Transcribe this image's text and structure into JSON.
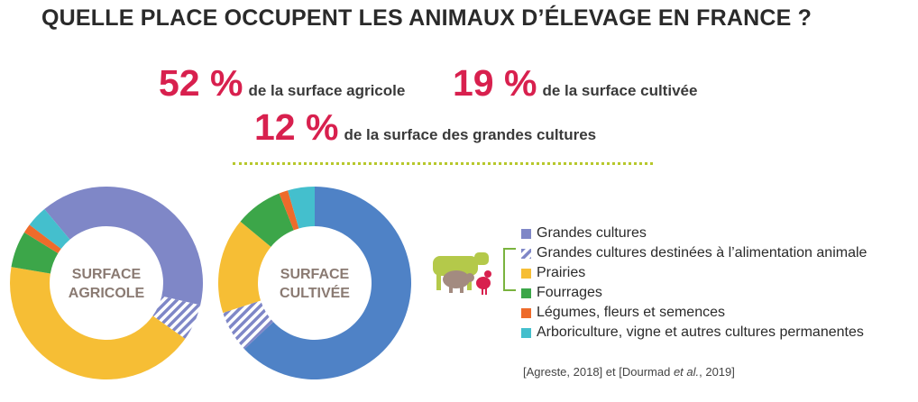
{
  "title": "QUELLE PLACE OCCUPENT LES ANIMAUX D’ÉLEVAGE EN FRANCE ?",
  "stats": [
    {
      "value": "52 %",
      "label": "de la surface agricole"
    },
    {
      "value": "19 %",
      "label": "de la surface cultivée"
    },
    {
      "value": "12 %",
      "label": "de la surface des grandes cultures"
    }
  ],
  "colors": {
    "grandes_cultures": "#7f87c7",
    "grandes_cultures_alim": "#7f87c7",
    "prairies": "#f6be35",
    "fourrages": "#3ca649",
    "legumes": "#ee6b2b",
    "arboriculture": "#44bfcd",
    "cultivee_main": "#4f82c6",
    "accent": "#d8204e",
    "bracket": "#7ab33e"
  },
  "chart_data": [
    {
      "type": "pie",
      "title": "SURFACE AGRICOLE",
      "title_lines": [
        "SURFACE",
        "AGRICOLE"
      ],
      "categories": [
        "Grandes cultures",
        "Grandes cultures destinées à l’alimentation animale",
        "Prairies",
        "Fourrages",
        "Légumes, fleurs et semences",
        "Arboriculture, vigne et autres cultures permanentes"
      ],
      "values": [
        39,
        6,
        42,
        6,
        1.5,
        3.5
      ],
      "donut": true
    },
    {
      "type": "pie",
      "title": "SURFACE CULTIVÉE",
      "title_lines": [
        "SURFACE",
        "CULTIVÉE"
      ],
      "categories": [
        "Grandes cultures",
        "Grandes cultures destinées à l’alimentation animale",
        "Prairies",
        "Fourrages",
        "Légumes, fleurs et semences",
        "Arboriculture, vigne et autres cultures permanentes"
      ],
      "values": [
        63,
        7,
        16,
        8,
        1.5,
        4.5
      ],
      "donut": true
    }
  ],
  "legend": [
    {
      "label": "Grandes cultures",
      "key": "grandes_cultures",
      "hatched": false
    },
    {
      "label": "Grandes cultures destinées à l’alimentation animale",
      "key": "grandes_cultures_alim",
      "hatched": true
    },
    {
      "label": "Prairies",
      "key": "prairies",
      "hatched": false
    },
    {
      "label": "Fourrages",
      "key": "fourrages",
      "hatched": false
    },
    {
      "label": "Légumes, fleurs et semences",
      "key": "legumes",
      "hatched": false
    },
    {
      "label": "Arboriculture, vigne et autres cultures permanentes",
      "key": "arboriculture",
      "hatched": false
    }
  ],
  "icons": [
    "cow-icon",
    "pig-icon",
    "chicken-icon"
  ],
  "source": {
    "part1": "[Agreste, 2018] et [Dourmad ",
    "italic": "et al.",
    "part2": ", 2019]"
  }
}
